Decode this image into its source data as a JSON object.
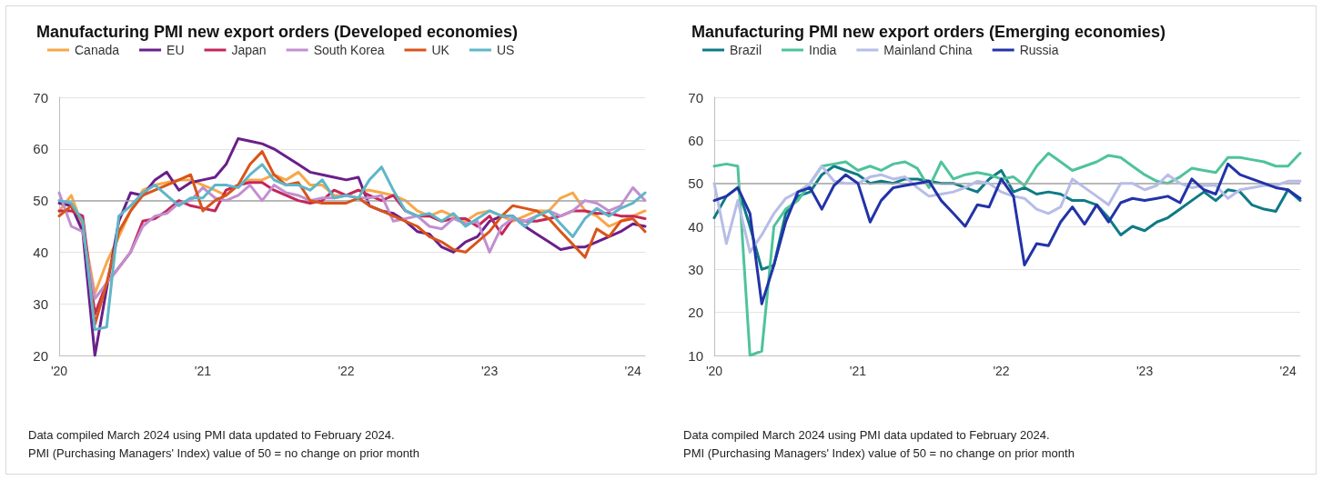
{
  "chart_data": [
    {
      "type": "line",
      "title": "Manufacturing PMI new export orders (Developed economies)",
      "annotations": [
        "Data compiled March 2024 using PMI data updated to February 2024.",
        "PMI (Purchasing Managers' Index) value of 50 = no change on prior month"
      ],
      "x": [
        "2020-01",
        "2020-02",
        "2020-03",
        "2020-04",
        "2020-05",
        "2020-06",
        "2020-07",
        "2020-08",
        "2020-09",
        "2020-10",
        "2020-11",
        "2020-12",
        "2021-01",
        "2021-02",
        "2021-03",
        "2021-04",
        "2021-05",
        "2021-06",
        "2021-07",
        "2021-08",
        "2021-09",
        "2021-10",
        "2021-11",
        "2021-12",
        "2022-01",
        "2022-02",
        "2022-03",
        "2022-04",
        "2022-05",
        "2022-06",
        "2022-07",
        "2022-08",
        "2022-09",
        "2022-10",
        "2022-11",
        "2022-12",
        "2023-01",
        "2023-02",
        "2023-03",
        "2023-04",
        "2023-05",
        "2023-06",
        "2023-07",
        "2023-08",
        "2023-09",
        "2023-10",
        "2023-11",
        "2023-12",
        "2024-01",
        "2024-02"
      ],
      "xlim": [
        "2020-01",
        "2024-02"
      ],
      "xticks": [
        {
          "value": "2020-01",
          "label": "'20"
        },
        {
          "value": "2021-01",
          "label": "'21"
        },
        {
          "value": "2022-01",
          "label": "'22"
        },
        {
          "value": "2023-01",
          "label": "'23"
        },
        {
          "value": "2024-01",
          "label": "'24"
        }
      ],
      "ylim": [
        20,
        70
      ],
      "yticks": [
        20,
        30,
        40,
        50,
        60,
        70
      ],
      "grid": "y",
      "legend": "top",
      "marker": "none",
      "line_style": "solid",
      "ref_lines": [
        {
          "axis": "y",
          "value": 50,
          "color": "#a6a6a6"
        }
      ],
      "series": [
        {
          "name": "Canada",
          "color": "#f7a84a",
          "values": [
            48,
            51,
            45,
            32,
            38,
            43,
            48,
            52,
            53,
            53.5,
            54,
            54,
            53,
            52,
            51,
            53,
            54,
            54,
            55,
            54,
            55.5,
            53,
            53,
            51,
            51,
            52,
            52,
            51.5,
            51,
            50,
            48,
            47,
            48,
            47,
            46,
            47.5,
            48,
            47,
            46,
            47,
            48,
            48,
            50.5,
            51.5,
            48,
            47,
            45,
            46,
            47,
            48
          ]
        },
        {
          "name": "EU",
          "color": "#6a1f8a",
          "values": [
            49.5,
            49,
            44,
            20,
            33,
            46,
            51.5,
            51,
            54,
            55.5,
            52,
            53.5,
            54,
            54.5,
            57,
            62,
            61.5,
            61,
            60,
            58.5,
            57,
            55.5,
            55,
            54.5,
            54,
            54.5,
            49,
            48,
            47.5,
            46,
            44,
            43.5,
            41,
            40,
            42,
            43,
            46,
            47,
            47,
            45,
            43.5,
            42,
            40.5,
            41,
            41,
            42,
            43,
            44,
            45.5,
            45
          ]
        },
        {
          "name": "Japan",
          "color": "#c4275a",
          "values": [
            48,
            48,
            47,
            28,
            34,
            37,
            40,
            46,
            46.5,
            48,
            50,
            49,
            48.5,
            48,
            52,
            53,
            53.5,
            53.5,
            52,
            51,
            50,
            49.5,
            50,
            52,
            51,
            52,
            51,
            50,
            51,
            48,
            47,
            47,
            46,
            46.5,
            46.5,
            45,
            47,
            43.5,
            46.5,
            46,
            46,
            46.5,
            47,
            48,
            48,
            47.5,
            47.5,
            47,
            47,
            46.5
          ]
        },
        {
          "name": "South Korea",
          "color": "#c28fd0",
          "values": [
            51.5,
            45,
            44,
            31,
            34,
            37,
            40,
            45,
            47,
            47.5,
            49.5,
            50,
            52.5,
            50.5,
            50,
            51,
            53,
            50,
            53,
            51.5,
            51,
            50,
            50.5,
            50.5,
            51,
            50.5,
            50.5,
            51,
            46,
            46.5,
            47,
            45,
            44.5,
            46.5,
            45.5,
            46,
            40,
            45,
            46.5,
            46,
            47,
            48,
            47,
            48,
            50,
            49.5,
            48,
            49,
            52.5,
            50
          ]
        },
        {
          "name": "UK",
          "color": "#d9541a",
          "values": [
            47,
            49,
            46,
            26,
            34,
            44,
            48,
            51,
            52,
            53,
            54,
            55,
            48,
            50,
            51,
            53,
            57,
            59.5,
            55,
            53,
            53.5,
            50,
            49.5,
            49.5,
            49.5,
            50.5,
            49,
            48,
            47,
            46,
            45,
            43,
            42,
            40.5,
            40,
            42,
            44,
            47,
            49,
            48.5,
            48,
            46.5,
            44,
            41.5,
            39,
            44.5,
            43,
            46,
            46.5,
            44
          ]
        },
        {
          "name": "US",
          "color": "#5fb6c8",
          "values": [
            50,
            49.5,
            46,
            25,
            25.5,
            47,
            49,
            51.5,
            53,
            51,
            49,
            50.5,
            50.5,
            53,
            53,
            52.5,
            55,
            57,
            54,
            53,
            53,
            52,
            54,
            50.5,
            51,
            50.5,
            54,
            56.5,
            52,
            48,
            47,
            47.5,
            46,
            47.5,
            45,
            46.5,
            48,
            47,
            47,
            45,
            47,
            48,
            45.5,
            43,
            46.5,
            48.5,
            47,
            48.5,
            49.5,
            51.5
          ]
        }
      ]
    },
    {
      "type": "line",
      "title": "Manufacturing PMI new export orders (Emerging economies)",
      "annotations": [
        "Data compiled March 2024 using PMI data updated to February 2024.",
        "PMI (Purchasing Managers' Index) value of 50 = no change on prior month"
      ],
      "x": [
        "2020-01",
        "2020-02",
        "2020-03",
        "2020-04",
        "2020-05",
        "2020-06",
        "2020-07",
        "2020-08",
        "2020-09",
        "2020-10",
        "2020-11",
        "2020-12",
        "2021-01",
        "2021-02",
        "2021-03",
        "2021-04",
        "2021-05",
        "2021-06",
        "2021-07",
        "2021-08",
        "2021-09",
        "2021-10",
        "2021-11",
        "2021-12",
        "2022-01",
        "2022-02",
        "2022-03",
        "2022-04",
        "2022-05",
        "2022-06",
        "2022-07",
        "2022-08",
        "2022-09",
        "2022-10",
        "2022-11",
        "2022-12",
        "2023-01",
        "2023-02",
        "2023-03",
        "2023-04",
        "2023-05",
        "2023-06",
        "2023-07",
        "2023-08",
        "2023-09",
        "2023-10",
        "2023-11",
        "2023-12",
        "2024-01",
        "2024-02"
      ],
      "xlim": [
        "2020-01",
        "2024-02"
      ],
      "xticks": [
        {
          "value": "2020-01",
          "label": "'20"
        },
        {
          "value": "2021-01",
          "label": "'21"
        },
        {
          "value": "2022-01",
          "label": "'22"
        },
        {
          "value": "2023-01",
          "label": "'23"
        },
        {
          "value": "2024-01",
          "label": "'24"
        }
      ],
      "ylim": [
        10,
        70
      ],
      "yticks": [
        10,
        20,
        30,
        40,
        50,
        60,
        70
      ],
      "grid": "y",
      "legend": "top",
      "marker": "none",
      "line_style": "solid",
      "ref_lines": [
        {
          "axis": "y",
          "value": 50,
          "color": "#a6a6a6"
        }
      ],
      "series": [
        {
          "name": "Brazil",
          "color": "#0f7a86",
          "values": [
            42,
            47,
            49,
            40,
            30,
            31,
            43,
            47,
            48,
            52,
            54,
            53,
            52,
            50,
            50.5,
            50,
            51,
            51,
            50.5,
            50,
            50,
            49,
            48,
            51,
            53,
            48,
            49,
            47.5,
            48,
            47.5,
            46,
            46,
            45,
            42,
            38,
            40,
            39,
            41,
            42,
            44,
            46,
            48,
            46,
            48.5,
            48,
            45,
            44,
            43.5,
            48.5,
            46
          ]
        },
        {
          "name": "India",
          "color": "#4fc39b",
          "values": [
            54,
            54.5,
            54,
            10,
            11,
            40,
            44,
            46,
            50,
            54,
            54.5,
            55,
            53,
            54,
            53,
            54.5,
            55,
            53.5,
            49,
            55,
            51,
            52,
            52.5,
            52,
            51,
            51.5,
            49.5,
            54,
            57,
            55,
            53,
            54,
            55,
            56.5,
            56,
            54,
            52,
            50.5,
            50,
            51.5,
            53.5,
            53,
            52.5,
            56,
            56,
            55.5,
            55,
            54,
            54,
            57
          ]
        },
        {
          "name": "Mainland China",
          "color": "#b7bde6",
          "values": [
            50,
            36,
            46,
            34,
            38,
            43,
            46.5,
            48,
            50,
            54,
            50.5,
            50,
            50,
            51.5,
            52,
            51,
            51.5,
            49,
            47,
            47.5,
            48,
            49,
            50.5,
            50,
            48,
            47,
            46.5,
            44,
            43,
            44.5,
            51,
            49,
            47,
            45,
            50,
            50,
            48.5,
            49.5,
            52,
            50,
            49,
            49.5,
            49.5,
            46.5,
            48.5,
            49,
            49.5,
            49.5,
            50.5,
            50.5
          ]
        },
        {
          "name": "Russia",
          "color": "#2233a8",
          "values": [
            46,
            47,
            49,
            43,
            22,
            31,
            41,
            48,
            49,
            44,
            49.5,
            52,
            50,
            41,
            46,
            49,
            49.5,
            50,
            50.5,
            46,
            43,
            40,
            45,
            44.5,
            51,
            47,
            31,
            36,
            35.5,
            41,
            44.5,
            40.5,
            45,
            41,
            45.5,
            46.5,
            46,
            46.5,
            47,
            45.5,
            51,
            48.5,
            47.5,
            54.5,
            52,
            51,
            50,
            49,
            48.5,
            46.5
          ]
        }
      ]
    }
  ]
}
